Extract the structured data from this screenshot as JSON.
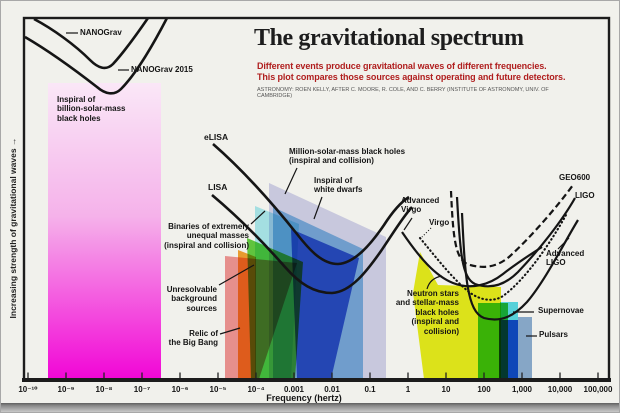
{
  "title": "The gravitational spectrum",
  "subtitle": "Different events produce gravitational waves of different frequencies.\nThis plot compares those sources against operating and future detectors.",
  "attribution": "ASTRONOMY: ROEN KELLY, AFTER C. MOORE, R. COLE, AND C. BERRY (INSTITUTE OF ASTRONOMY, UNIV. OF CAMBRIDGE)",
  "y_axis_label": "Increasing strength of gravitational waves →",
  "x_axis_label": "Frequency (hertz)",
  "axis": {
    "ticks": [
      "10⁻¹⁰",
      "10⁻⁹",
      "10⁻⁸",
      "10⁻⁷",
      "10⁻⁶",
      "10⁻⁵",
      "10⁻⁴",
      "0.001",
      "0.01",
      "0.1",
      "1",
      "10",
      "100",
      "1,000",
      "10,000",
      "100,000"
    ],
    "scale": "log"
  },
  "labels": {
    "nanograv": "NANOGrav",
    "nanograv_2015": "NANOGrav 2015",
    "inspiral_billion": "Inspiral of\nbillion-solar-mass\nblack holes",
    "elisa": "eLISA",
    "lisa": "LISA",
    "million_bh": "Million-solar-mass black holes\n(inspiral and collision)",
    "white_dwarfs": "Inspiral of\nwhite dwarfs",
    "binaries": "Binaries of extremely\nunequal masses\n(inspiral and collision)",
    "unresolvable": "Unresolvable\nbackground\nsources",
    "relic": "Relic of\nthe Big Bang",
    "adv_virgo": "Advanced\nVirgo",
    "virgo": "Virgo",
    "geo600": "GEO600",
    "ligo": "LIGO",
    "adv_ligo": "Advanced\nLIGO",
    "neutron": "Neutron stars\nand stellar-mass\nblack holes\n(inspiral and\ncollision)",
    "supernovae": "Supernovae",
    "pulsars": "Pulsars"
  },
  "colors": {
    "subtitle_red": "#b01e1e",
    "billion_bh_pink_top": "#fae7f7",
    "billion_bh_magenta_bottom": "#f206d6",
    "million_bh_lavender": "#b7b7e4",
    "white_dwarfs_blue": "#49a6e0",
    "binaries_cyan": "#8ce4f0",
    "deep_blue": "#1f49d8",
    "unresolvable_green": "#3ec514",
    "orange_band": "#f5940e",
    "relic_salmon": "#f27d7d",
    "neutron_yellow": "#e7ef08",
    "supernovae_green": "#2ec32a",
    "pulsars_steel_blue": "#7aa2cf",
    "curve_black": "#151515"
  },
  "chart_data": {
    "type": "area",
    "title": "The gravitational spectrum",
    "xlabel": "Frequency (hertz)",
    "ylabel": "Increasing strength of gravitational waves",
    "x_scale": "log",
    "x_range_hz": [
      1e-10,
      100000.0
    ],
    "x_ticks": [
      "10⁻¹⁰",
      "10⁻⁹",
      "10⁻⁸",
      "10⁻⁷",
      "10⁻⁶",
      "10⁻⁵",
      "10⁻⁴",
      "0.001",
      "0.01",
      "0.1",
      "1",
      "10",
      "100",
      "1,000",
      "10,000",
      "100,000"
    ],
    "grid": false,
    "legend": "labels annotated directly on plot",
    "detector_curves": [
      {
        "name": "NANOGrav",
        "style": "solid",
        "freq_range_hz": [
          1.5e-10,
          1.5e-07
        ],
        "best_freq_hz": 1e-08
      },
      {
        "name": "NANOGrav 2015",
        "style": "solid",
        "freq_range_hz": [
          1e-10,
          5e-07
        ],
        "best_freq_hz": 2e-08
      },
      {
        "name": "eLISA",
        "style": "solid",
        "freq_range_hz": [
          7e-06,
          1
        ],
        "best_freq_hz": 0.005
      },
      {
        "name": "LISA",
        "style": "solid",
        "freq_range_hz": [
          7e-06,
          1.2
        ],
        "best_freq_hz": 0.005
      },
      {
        "name": "Advanced Virgo",
        "style": "solid",
        "freq_range_hz": [
          1,
          3000
        ],
        "best_freq_hz": 100
      },
      {
        "name": "Virgo",
        "style": "dotted",
        "freq_range_hz": [
          3,
          10000
        ],
        "best_freq_hz": 200
      },
      {
        "name": "GEO600",
        "style": "dashed",
        "freq_range_hz": [
          10,
          20000
        ],
        "best_freq_hz": 300
      },
      {
        "name": "LIGO",
        "style": "solid",
        "freq_range_hz": [
          15,
          20000
        ],
        "best_freq_hz": 200
      },
      {
        "name": "Advanced LIGO",
        "style": "solid",
        "freq_range_hz": [
          20,
          20000
        ],
        "best_freq_hz": 200
      }
    ],
    "source_regions": [
      {
        "name": "Inspiral of billion-solar-mass black holes",
        "color": "#f206d6",
        "freq_range_hz": [
          3e-10,
          3e-07
        ]
      },
      {
        "name": "Binaries of extremely unequal masses (inspiral and collision)",
        "color": "#8ce4f0",
        "freq_range_hz": [
          0.0001,
          0.002
        ]
      },
      {
        "name": "Million-solar-mass black holes (inspiral and collision)",
        "color": "#b7b7e4",
        "freq_range_hz": [
          0.0002,
          0.5
        ]
      },
      {
        "name": "Inspiral of white dwarfs",
        "color": "#49a6e0",
        "freq_range_hz": [
          0.0003,
          0.06
        ]
      },
      {
        "name": "Unresolvable background sources",
        "color": "#3ec514",
        "freq_range_hz": [
          6e-05,
          0.002
        ]
      },
      {
        "name": "Relic of the Big Bang",
        "color": "#f27d7d",
        "freq_range_hz": [
          1.5e-05,
          0.001
        ]
      },
      {
        "name": "Neutron stars and stellar-mass black holes (inspiral and collision)",
        "color": "#e7ef08",
        "freq_range_hz": [
          1.3,
          430
        ]
      },
      {
        "name": "Supernovae",
        "color": "#2ec32a",
        "freq_range_hz": [
          70,
          430
        ]
      },
      {
        "name": "Pulsars",
        "color": "#7aa2cf",
        "freq_range_hz": [
          800,
          1800
        ]
      }
    ]
  }
}
